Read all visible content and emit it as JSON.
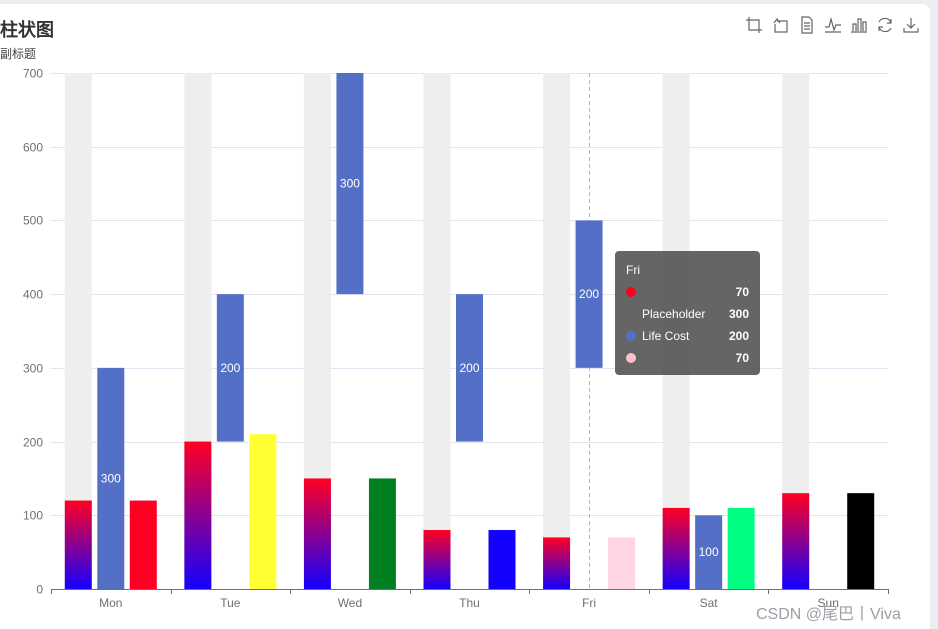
{
  "title": "柱状图",
  "subtitle": "副标题",
  "watermark": "CSDN @尾巴丨Viva",
  "toolbox": [
    "zoom-icon",
    "zoom-reset-icon",
    "data-view-icon",
    "line-chart-icon",
    "bar-chart-icon",
    "restore-icon",
    "save-image-icon"
  ],
  "chart_data": {
    "type": "bar",
    "categories": [
      "Mon",
      "Tue",
      "Wed",
      "Thu",
      "Fri",
      "Sat",
      "Sun"
    ],
    "yticks": [
      0,
      100,
      200,
      300,
      400,
      500,
      600,
      700
    ],
    "ylim": [
      0,
      700
    ],
    "grid": true,
    "background_bar": {
      "color": "#eeeeee",
      "value": 700
    },
    "series": [
      {
        "values": [
          120,
          200,
          150,
          80,
          70,
          110,
          130
        ],
        "gradient": [
          "#ff0022",
          "#1400ff"
        ]
      },
      {
        "name": "Placeholder",
        "values": [
          0,
          200,
          400,
          200,
          300,
          0,
          0
        ],
        "stack": "total",
        "transparent": true
      },
      {
        "name": "Life Cost",
        "values": [
          300,
          200,
          300,
          200,
          200,
          100,
          0
        ],
        "stack": "total",
        "color": "#5470c6",
        "labels": [
          "300",
          "200",
          "300",
          "200",
          "200",
          "100",
          ""
        ]
      },
      {
        "values": [
          120,
          210,
          150,
          80,
          70,
          110,
          130
        ],
        "colors": [
          "#ff0022",
          "#ffff33",
          "#008020",
          "#1400ff",
          "#ffd6e2",
          "#00ff80",
          "#000000"
        ]
      }
    ],
    "axis_pointer_category": "Fri"
  },
  "tooltip": {
    "title": "Fri",
    "rows": [
      {
        "color": "#ff0022",
        "name": "",
        "value": "70"
      },
      {
        "color": "",
        "name": "Placeholder",
        "value": "300"
      },
      {
        "color": "#5470c6",
        "name": "Life Cost",
        "value": "200"
      },
      {
        "color": "#ffc0cb",
        "name": "",
        "value": "70"
      }
    ]
  }
}
